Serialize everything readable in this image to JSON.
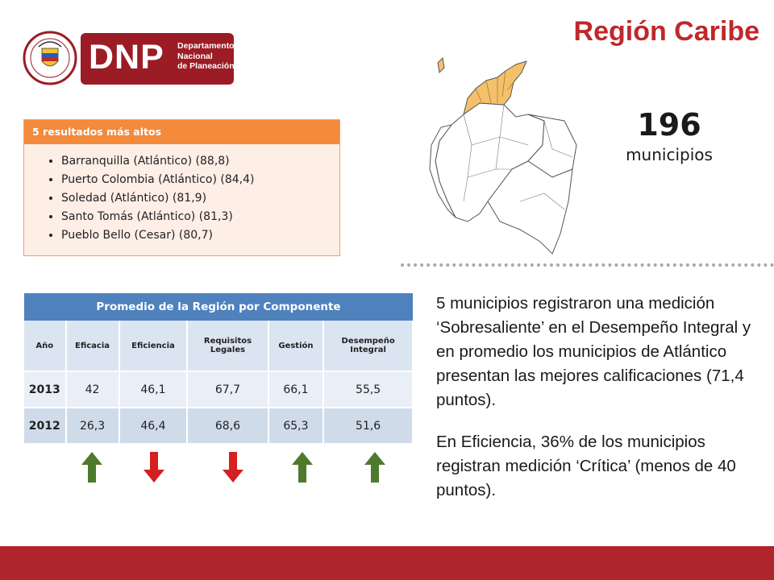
{
  "region_title": "Región Caribe",
  "logo": {
    "brand": "DNP",
    "subtitle_lines": [
      "Departamento",
      "Nacional",
      "de Planeación"
    ],
    "seal_top": "REPÚBLICA",
    "seal_bottom": "DE COLOMBIA"
  },
  "top_results": {
    "header": "5 resultados más altos",
    "items": [
      "Barranquilla (Atlántico) (88,8)",
      "Puerto Colombia (Atlántico) (84,4)",
      "Soledad (Atlántico) (81,9)",
      "Santo Tomás (Atlántico) (81,3)",
      "Pueblo Bello (Cesar) (80,7)"
    ]
  },
  "municipality_count": {
    "number": "196",
    "label": "municipios"
  },
  "table": {
    "title": "Promedio de la Región por Componente",
    "headers": [
      "Año",
      "Eficacia",
      "Eficiencia",
      "Requisitos Legales",
      "Gestión",
      "Desempeño Integral"
    ],
    "rows": [
      [
        "2013",
        "42",
        "46,1",
        "67,7",
        "66,1",
        "55,5"
      ],
      [
        "2012",
        "26,3",
        "46,4",
        "68,6",
        "65,3",
        "51,6"
      ]
    ]
  },
  "trend_arrows": [
    {
      "component": "Eficacia",
      "direction": "up",
      "color": "#4e7a2e"
    },
    {
      "component": "Eficiencia",
      "direction": "down",
      "color": "#d42020"
    },
    {
      "component": "Requisitos Legales",
      "direction": "down",
      "color": "#d42020"
    },
    {
      "component": "Gestión",
      "direction": "up",
      "color": "#4e7a2e"
    },
    {
      "component": "Desempeño Integral",
      "direction": "up",
      "color": "#4e7a2e"
    }
  ],
  "description": {
    "paragraph1": "5 municipios registraron una medición ‘Sobresaliente’ en el Desempeño Integral y en promedio los municipios de Atlántico presentan las mejores calificaciones (71,4 puntos).",
    "paragraph2": "En Eficiencia, 36% de los municipios registran medición ‘Crítica’ (menos de 40 puntos)."
  },
  "colors": {
    "accent_red": "#c0282b",
    "table_blue": "#4f81bd",
    "top_box_orange": "#f38a3c",
    "map_highlight": "#f4c06a",
    "footer": "#b0242c"
  }
}
